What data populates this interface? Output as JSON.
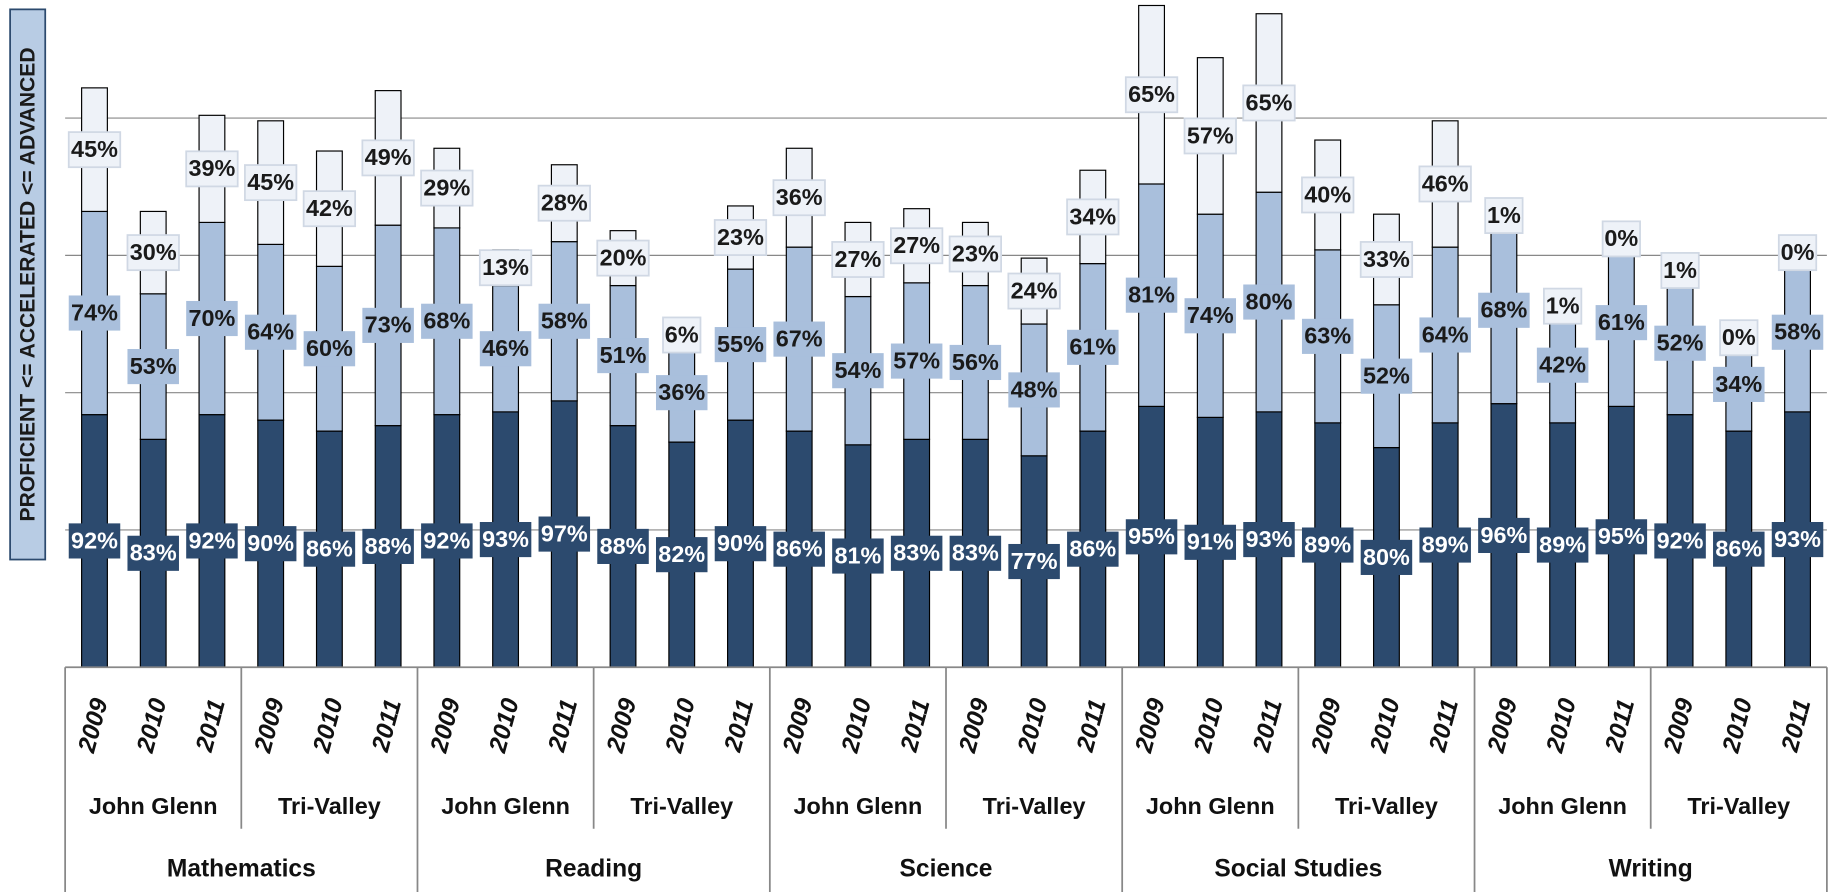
{
  "chart_data": {
    "type": "stacked_bar",
    "y_axis_label": "PROFICIENT <= ACCELERATED <= ADVANCED",
    "categories": [
      "2009",
      "2010",
      "2011",
      "2009",
      "2010",
      "2011",
      "2009",
      "2010",
      "2011",
      "2009",
      "2010",
      "2011",
      "2009",
      "2010",
      "2011",
      "2009",
      "2010",
      "2011",
      "2009",
      "2010",
      "2011",
      "2009",
      "2010",
      "2011",
      "2009",
      "2010",
      "2011",
      "2009",
      "2010",
      "2011"
    ],
    "schools": [
      "John Glenn",
      "Tri-Valley",
      "John Glenn",
      "Tri-Valley",
      "John Glenn",
      "Tri-Valley",
      "John Glenn",
      "Tri-Valley",
      "John Glenn",
      "Tri-Valley"
    ],
    "subjects": [
      "Mathematics",
      "Reading",
      "Science",
      "Social Studies",
      "Writing"
    ],
    "ylim": [
      0,
      243
    ],
    "yticks": [
      50,
      100,
      150,
      200
    ],
    "grid": true,
    "series": [
      {
        "name": "Proficient",
        "color": "#2c4a6e",
        "label_color": "#ffffff",
        "values": [
          92,
          83,
          92,
          90,
          86,
          88,
          92,
          93,
          97,
          88,
          82,
          90,
          86,
          81,
          83,
          83,
          77,
          86,
          95,
          91,
          93,
          89,
          80,
          89,
          96,
          89,
          95,
          92,
          86,
          93
        ],
        "value_labels": [
          "92%",
          "83%",
          "92%",
          "90%",
          "86%",
          "88%",
          "92%",
          "93%",
          "97%",
          "88%",
          "82%",
          "90%",
          "86%",
          "81%",
          "83%",
          "83%",
          "77%",
          "86%",
          "95%",
          "91%",
          "93%",
          "89%",
          "80%",
          "89%",
          "96%",
          "89%",
          "95%",
          "92%",
          "86%",
          "93%"
        ]
      },
      {
        "name": "Accelerated",
        "color": "#a9bfdc",
        "label_color": "#1a1a1a",
        "values": [
          74,
          53,
          70,
          64,
          60,
          73,
          68,
          46,
          58,
          51,
          36,
          55,
          67,
          54,
          57,
          56,
          48,
          61,
          81,
          74,
          80,
          63,
          52,
          64,
          68,
          42,
          61,
          52,
          34,
          58
        ],
        "value_labels": [
          "74%",
          "53%",
          "70%",
          "64%",
          "60%",
          "73%",
          "68%",
          "46%",
          "58%",
          "51%",
          "36%",
          "55%",
          "67%",
          "54%",
          "57%",
          "56%",
          "48%",
          "61%",
          "81%",
          "74%",
          "80%",
          "63%",
          "52%",
          "64%",
          "68%",
          "42%",
          "61%",
          "52%",
          "34%",
          "58%"
        ]
      },
      {
        "name": "Advanced",
        "color": "#eef2f8",
        "label_color": "#1a1a1a",
        "values": [
          45,
          30,
          39,
          45,
          42,
          49,
          29,
          13,
          28,
          20,
          6,
          23,
          36,
          27,
          27,
          23,
          24,
          34,
          65,
          57,
          65,
          40,
          33,
          46,
          1,
          1,
          0,
          1,
          0,
          0
        ],
        "value_labels": [
          "45%",
          "30%",
          "39%",
          "45%",
          "42%",
          "49%",
          "29%",
          "13%",
          "28%",
          "20%",
          "6%",
          "23%",
          "36%",
          "27%",
          "27%",
          "23%",
          "24%",
          "34%",
          "65%",
          "57%",
          "65%",
          "40%",
          "33%",
          "46%",
          "1%",
          "1%",
          "0%",
          "1%",
          "0%",
          "0%"
        ]
      }
    ]
  }
}
